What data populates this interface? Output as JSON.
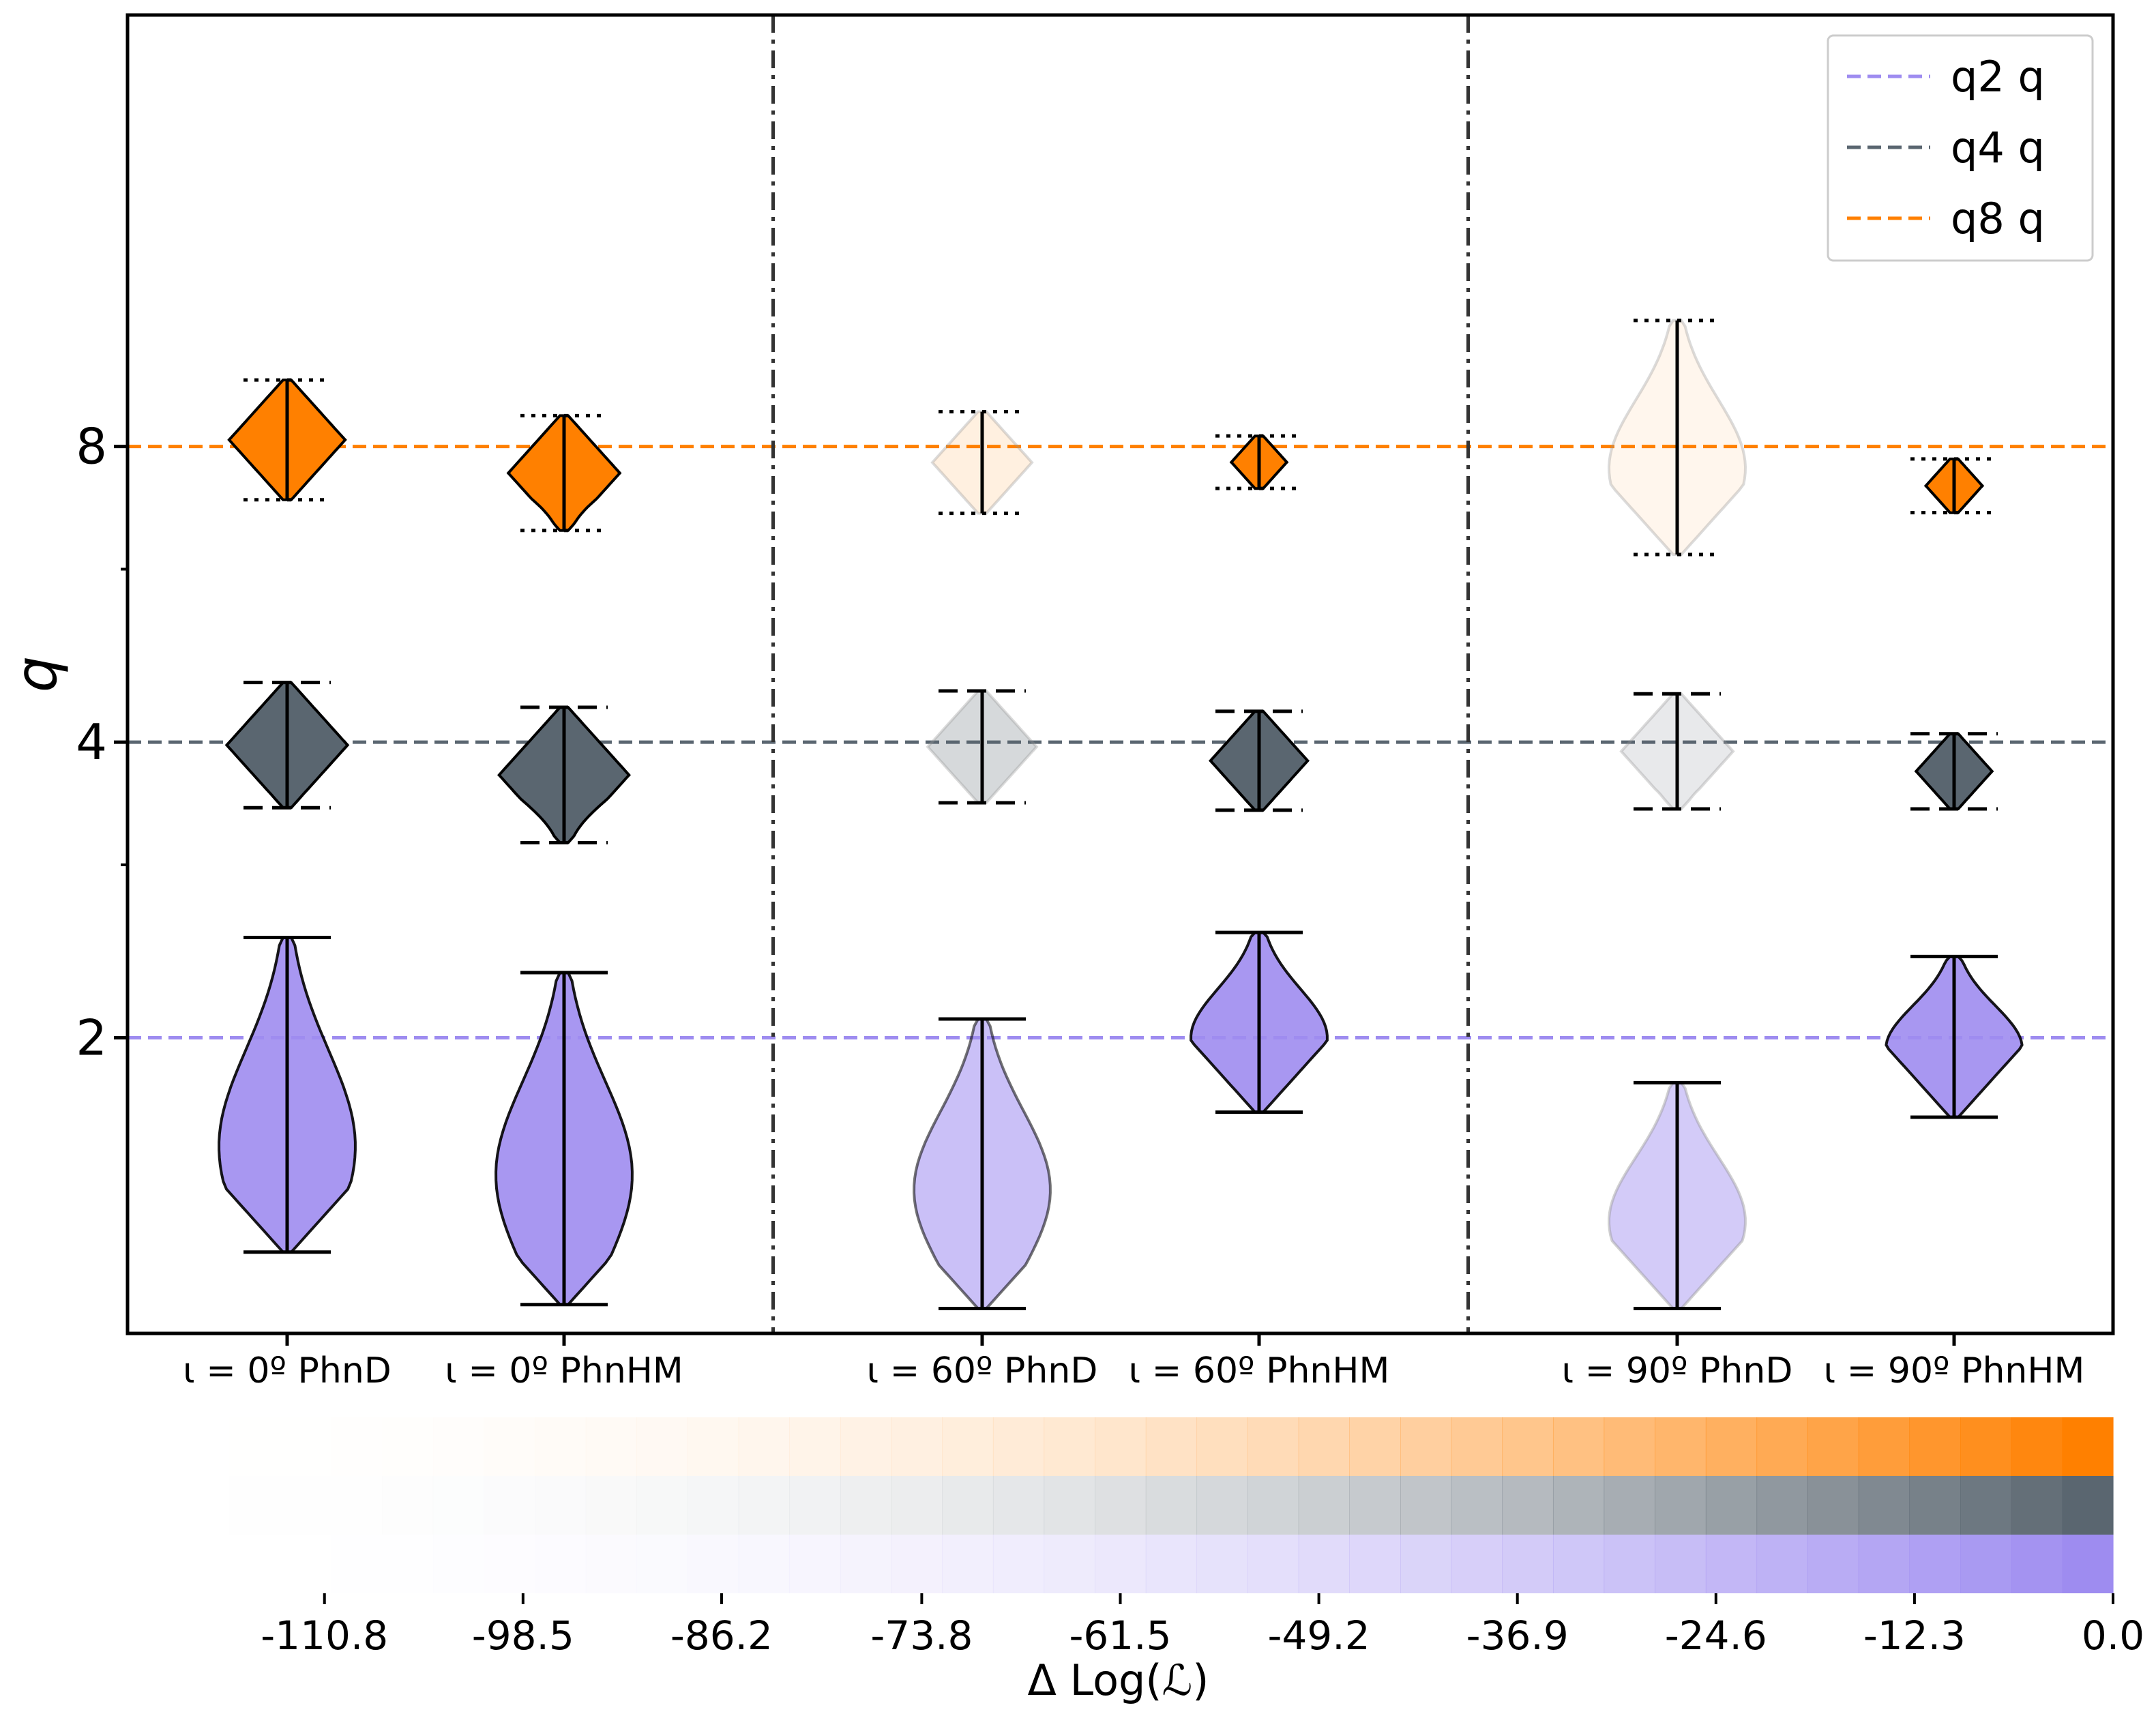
{
  "chart_data": {
    "type": "violin",
    "ylabel": "q",
    "y_scale": "log2",
    "ylim": [
      1.0,
      22.0
    ],
    "yticks": [
      {
        "v": 2,
        "label": "2"
      },
      {
        "v": 4,
        "label": "4"
      },
      {
        "v": 8,
        "label": "8"
      }
    ],
    "categories": [
      "ι = 0º PhnD",
      "ι = 0º PhnHM",
      "ι = 60º PhnD",
      "ι = 60º PhnHM",
      "ι = 90º PhnD",
      "ι = 90º PhnHM"
    ],
    "group_separators_after_category": [
      2,
      4
    ],
    "reference_lines": [
      {
        "name": "q2 q",
        "y": 2,
        "color": "#9e8cf0"
      },
      {
        "name": "q4 q",
        "y": 4,
        "color": "#5a6670"
      },
      {
        "name": "q8 q",
        "y": 8,
        "color": "#ff8000"
      }
    ],
    "legend_position": "top-right",
    "series": [
      {
        "name": "q2",
        "color": "#9e8cf0",
        "violins": [
          {
            "min": 1.21,
            "max": 2.53,
            "median_shape": 1.55,
            "opacity": 0.9
          },
          {
            "min": 1.07,
            "max": 2.33,
            "median_shape": 1.45,
            "opacity": 0.9
          },
          {
            "min": 1.06,
            "max": 2.09,
            "median_shape": 1.4,
            "opacity": 0.55
          },
          {
            "min": 1.68,
            "max": 2.56,
            "median_shape": 2.0,
            "opacity": 0.9
          },
          {
            "min": 1.06,
            "max": 1.8,
            "median_shape": 1.3,
            "opacity": 0.45
          },
          {
            "min": 1.66,
            "max": 2.42,
            "median_shape": 1.95,
            "opacity": 0.9
          }
        ]
      },
      {
        "name": "q4",
        "color": "#5a6670",
        "violins": [
          {
            "min": 3.43,
            "max": 4.6,
            "median_shape": 4.0,
            "opacity": 1.0
          },
          {
            "min": 3.16,
            "max": 4.34,
            "median_shape": 3.8,
            "opacity": 1.0
          },
          {
            "min": 3.47,
            "max": 4.51,
            "median_shape": 4.0,
            "opacity": 0.25
          },
          {
            "min": 3.41,
            "max": 4.3,
            "median_shape": 3.85,
            "opacity": 1.0
          },
          {
            "min": 3.42,
            "max": 4.48,
            "median_shape": 4.0,
            "opacity": 0.14
          },
          {
            "min": 3.42,
            "max": 4.08,
            "median_shape": 3.72,
            "opacity": 1.0
          }
        ]
      },
      {
        "name": "q8",
        "color": "#ff8000",
        "violins": [
          {
            "min": 7.06,
            "max": 9.35,
            "median_shape": 8.2,
            "opacity": 1.0
          },
          {
            "min": 6.57,
            "max": 8.6,
            "median_shape": 7.8,
            "opacity": 1.0
          },
          {
            "min": 6.84,
            "max": 8.68,
            "median_shape": 7.9,
            "opacity": 0.12
          },
          {
            "min": 7.25,
            "max": 8.2,
            "median_shape": 7.75,
            "opacity": 1.0
          },
          {
            "min": 6.21,
            "max": 10.75,
            "median_shape": 7.6,
            "opacity": 0.07
          },
          {
            "min": 6.85,
            "max": 7.77,
            "median_shape": 7.3,
            "opacity": 1.0
          }
        ]
      }
    ],
    "colorbar": {
      "label": "Δ Log(ℒ)",
      "range": [
        -123.0,
        0.0
      ],
      "ticks": [
        "-110.8",
        "-98.5",
        "-86.2",
        "-73.8",
        "-61.5",
        "-49.2",
        "-36.9",
        "-24.6",
        "-12.3",
        "0.0"
      ],
      "rows": [
        "#ff8000",
        "#5a6670",
        "#9e8cf0"
      ]
    }
  }
}
